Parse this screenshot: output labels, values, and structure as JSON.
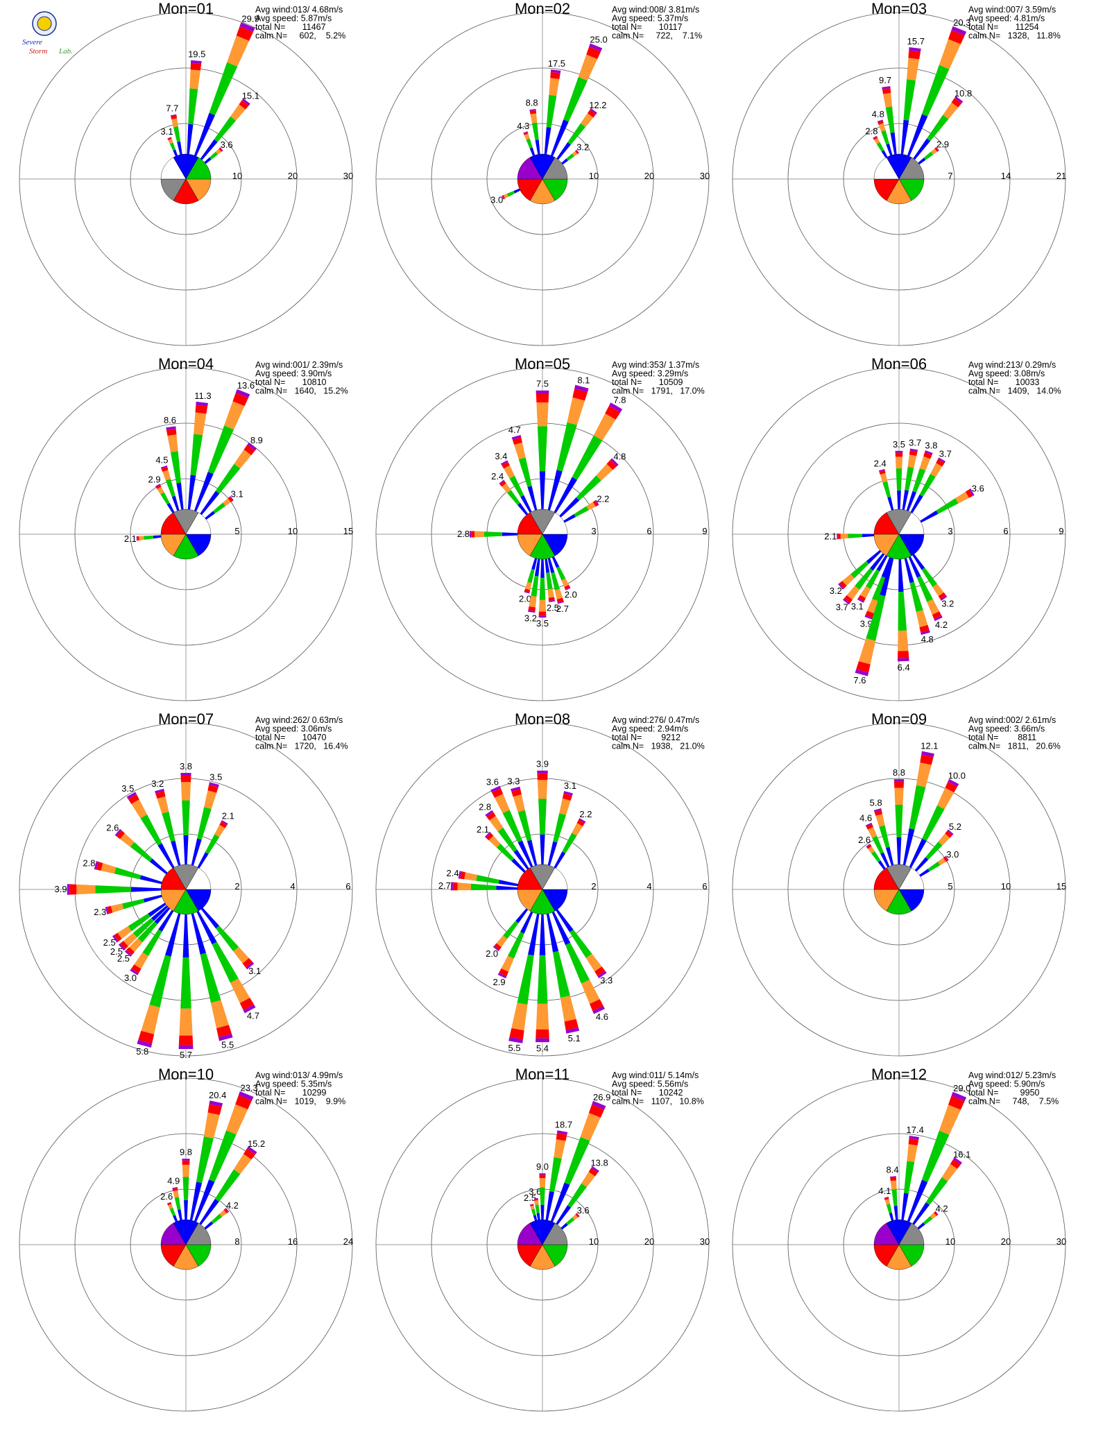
{
  "logo": {
    "text_a": "Severe",
    "text_b": "Storm",
    "text_c": "Lab."
  },
  "colors": {
    "blue": "#0000ff",
    "green": "#00cc00",
    "orange": "#ff9933",
    "red": "#ff0000",
    "purple": "#9900cc",
    "gray": "#888888"
  },
  "chart_data": [
    {
      "type": "wind_rose",
      "title": "Mon=01",
      "stats": {
        "avg_wind": "Avg wind:013/ 4.68m/s",
        "avg_speed": "Avg speed: 5.87m/s",
        "total": "total N=       11467",
        "calm": "calm N=     602,    5.2%"
      },
      "rings": [
        "10",
        "20",
        "30"
      ],
      "rmax": 30,
      "labeled_bars": [
        {
          "dir": 338,
          "value": 3.1
        },
        {
          "dir": 349,
          "value": 7.7
        },
        {
          "dir": 5,
          "value": 19.5
        },
        {
          "dir": 22,
          "value": 29.9
        },
        {
          "dir": 38,
          "value": 15.1
        },
        {
          "dir": 50,
          "value": 3.6
        }
      ],
      "pie": [
        "orange",
        "red",
        "gray",
        "white",
        "blue",
        "green"
      ]
    },
    {
      "type": "wind_rose",
      "title": "Mon=02",
      "stats": {
        "avg_wind": "Avg wind:008/ 3.81m/s",
        "avg_speed": "Avg speed: 5.37m/s",
        "total": "total N=       10117",
        "calm": "calm N=     722,    7.1%"
      },
      "rings": [
        "10",
        "20",
        "30"
      ],
      "rmax": 30,
      "labeled_bars": [
        {
          "dir": 340,
          "value": 4.3
        },
        {
          "dir": 352,
          "value": 8.8
        },
        {
          "dir": 7,
          "value": 17.5
        },
        {
          "dir": 22,
          "value": 25.0
        },
        {
          "dir": 37,
          "value": 12.2
        },
        {
          "dir": 52,
          "value": 3.2
        },
        {
          "dir": 245,
          "value": 3.0
        }
      ],
      "pie": [
        "green",
        "orange",
        "red",
        "purple",
        "blue",
        "gray"
      ]
    },
    {
      "type": "wind_rose",
      "title": "Mon=03",
      "stats": {
        "avg_wind": "Avg wind:007/ 3.59m/s",
        "avg_speed": "Avg speed: 4.81m/s",
        "total": "total N=       11254",
        "calm": "calm N=   1328,   11.8%"
      },
      "rings": [
        "7",
        "14",
        "21"
      ],
      "rmax": 21,
      "labeled_bars": [
        {
          "dir": 330,
          "value": 2.8
        },
        {
          "dir": 342,
          "value": 4.8
        },
        {
          "dir": 352,
          "value": 9.7
        },
        {
          "dir": 7,
          "value": 15.7
        },
        {
          "dir": 22,
          "value": 20.3
        },
        {
          "dir": 37,
          "value": 10.8
        },
        {
          "dir": 52,
          "value": 2.9
        }
      ],
      "pie": [
        "green",
        "orange",
        "red",
        "white",
        "blue",
        "gray"
      ]
    },
    {
      "type": "wind_rose",
      "title": "Mon=04",
      "stats": {
        "avg_wind": "Avg wind:001/ 2.39m/s",
        "avg_speed": "Avg speed: 3.90m/s",
        "total": "total N=       10810",
        "calm": "calm N=   1640,   15.2%"
      },
      "rings": [
        "5",
        "10",
        "15"
      ],
      "rmax": 15,
      "labeled_bars": [
        {
          "dir": 330,
          "value": 2.9
        },
        {
          "dir": 342,
          "value": 4.5
        },
        {
          "dir": 352,
          "value": 8.6
        },
        {
          "dir": 7,
          "value": 11.3
        },
        {
          "dir": 22,
          "value": 13.6
        },
        {
          "dir": 37,
          "value": 8.9
        },
        {
          "dir": 52,
          "value": 3.1
        },
        {
          "dir": 265,
          "value": 2.1
        }
      ],
      "pie": [
        "blue",
        "green",
        "orange",
        "red",
        "gray",
        "white"
      ]
    },
    {
      "type": "wind_rose",
      "title": "Mon=05",
      "stats": {
        "avg_wind": "Avg wind:353/ 1.37m/s",
        "avg_speed": "Avg speed: 3.29m/s",
        "total": "total N=       10509",
        "calm": "calm N=   1791,   17.0%"
      },
      "rings": [
        "3",
        "6",
        "9"
      ],
      "rmax": 9,
      "labeled_bars": [
        {
          "dir": 322,
          "value": 2.4
        },
        {
          "dir": 332,
          "value": 3.4
        },
        {
          "dir": 345,
          "value": 4.7
        },
        {
          "dir": 0,
          "value": 7.5
        },
        {
          "dir": 15,
          "value": 8.1
        },
        {
          "dir": 30,
          "value": 7.8
        },
        {
          "dir": 45,
          "value": 4.8
        },
        {
          "dir": 60,
          "value": 2.2
        },
        {
          "dir": 270,
          "value": 2.8
        },
        {
          "dir": 195,
          "value": 2.0
        },
        {
          "dir": 188,
          "value": 3.2
        },
        {
          "dir": 180,
          "value": 3.5
        },
        {
          "dir": 172,
          "value": 2.5
        },
        {
          "dir": 165,
          "value": 2.7
        },
        {
          "dir": 155,
          "value": 2.0
        }
      ],
      "pie": [
        "blue",
        "green",
        "orange",
        "red",
        "gray",
        "white"
      ]
    },
    {
      "type": "wind_rose",
      "title": "Mon=06",
      "stats": {
        "avg_wind": "Avg wind:213/ 0.29m/s",
        "avg_speed": "Avg speed: 3.08m/s",
        "total": "total N=       10033",
        "calm": "calm N=   1409,   14.0%"
      },
      "rings": [
        "3",
        "6",
        "9"
      ],
      "rmax": 9,
      "labeled_bars": [
        {
          "dir": 345,
          "value": 2.4
        },
        {
          "dir": 0,
          "value": 3.5
        },
        {
          "dir": 10,
          "value": 3.7
        },
        {
          "dir": 20,
          "value": 3.8
        },
        {
          "dir": 30,
          "value": 3.7
        },
        {
          "dir": 60,
          "value": 3.6
        },
        {
          "dir": 268,
          "value": 2.1
        },
        {
          "dir": 228,
          "value": 3.2
        },
        {
          "dir": 218,
          "value": 3.7
        },
        {
          "dir": 210,
          "value": 3.1
        },
        {
          "dir": 200,
          "value": 3.9
        },
        {
          "dir": 195,
          "value": 7.6
        },
        {
          "dir": 178,
          "value": 6.4
        },
        {
          "dir": 165,
          "value": 4.8
        },
        {
          "dir": 155,
          "value": 4.2
        },
        {
          "dir": 145,
          "value": 3.2
        }
      ],
      "pie": [
        "blue",
        "green",
        "orange",
        "red",
        "gray",
        "white"
      ]
    },
    {
      "type": "wind_rose",
      "title": "Mon=07",
      "stats": {
        "avg_wind": "Avg wind:262/ 0.63m/s",
        "avg_speed": "Avg speed: 3.06m/s",
        "total": "total N=       10470",
        "calm": "calm N=   1720,   16.4%"
      },
      "rings": [
        "2",
        "4",
        "6"
      ],
      "rmax": 6,
      "labeled_bars": [
        {
          "dir": 310,
          "value": 2.6
        },
        {
          "dir": 330,
          "value": 3.5
        },
        {
          "dir": 345,
          "value": 3.2
        },
        {
          "dir": 0,
          "value": 3.8
        },
        {
          "dir": 15,
          "value": 3.5
        },
        {
          "dir": 30,
          "value": 2.1
        },
        {
          "dir": 285,
          "value": 2.8
        },
        {
          "dir": 270,
          "value": 3.9
        },
        {
          "dir": 255,
          "value": 2.3
        },
        {
          "dir": 235,
          "value": 2.5
        },
        {
          "dir": 228,
          "value": 2.5
        },
        {
          "dir": 222,
          "value": 2.5
        },
        {
          "dir": 212,
          "value": 3.0
        },
        {
          "dir": 195,
          "value": 5.8
        },
        {
          "dir": 180,
          "value": 5.7
        },
        {
          "dir": 165,
          "value": 5.5
        },
        {
          "dir": 152,
          "value": 4.7
        },
        {
          "dir": 140,
          "value": 3.1
        }
      ],
      "pie": [
        "blue",
        "green",
        "orange",
        "red",
        "gray",
        "white"
      ]
    },
    {
      "type": "wind_rose",
      "title": "Mon=08",
      "stats": {
        "avg_wind": "Avg wind:276/ 0.47m/s",
        "avg_speed": "Avg speed: 2.94m/s",
        "total": "total N=        9212",
        "calm": "calm N=   1938,   21.0%"
      },
      "rings": [
        "2",
        "4",
        "6"
      ],
      "rmax": 6,
      "labeled_bars": [
        {
          "dir": 315,
          "value": 2.1
        },
        {
          "dir": 325,
          "value": 2.8
        },
        {
          "dir": 335,
          "value": 3.6
        },
        {
          "dir": 345,
          "value": 3.3
        },
        {
          "dir": 0,
          "value": 3.9
        },
        {
          "dir": 15,
          "value": 3.1
        },
        {
          "dir": 30,
          "value": 2.2
        },
        {
          "dir": 280,
          "value": 2.4
        },
        {
          "dir": 272,
          "value": 2.7
        },
        {
          "dir": 218,
          "value": 2.0
        },
        {
          "dir": 205,
          "value": 2.9
        },
        {
          "dir": 190,
          "value": 5.5
        },
        {
          "dir": 180,
          "value": 5.4
        },
        {
          "dir": 168,
          "value": 5.1
        },
        {
          "dir": 155,
          "value": 4.6
        },
        {
          "dir": 145,
          "value": 3.3
        }
      ],
      "pie": [
        "blue",
        "green",
        "orange",
        "red",
        "gray",
        "white"
      ]
    },
    {
      "type": "wind_rose",
      "title": "Mon=09",
      "stats": {
        "avg_wind": "Avg wind:002/ 2.61m/s",
        "avg_speed": "Avg speed: 3.66m/s",
        "total": "total N=        8811",
        "calm": "calm N=   1811,   20.6%"
      },
      "rings": [
        "5",
        "10",
        "15"
      ],
      "rmax": 15,
      "labeled_bars": [
        {
          "dir": 325,
          "value": 2.6
        },
        {
          "dir": 335,
          "value": 4.6
        },
        {
          "dir": 345,
          "value": 5.8
        },
        {
          "dir": 0,
          "value": 8.8
        },
        {
          "dir": 12,
          "value": 12.1
        },
        {
          "dir": 27,
          "value": 10.0
        },
        {
          "dir": 42,
          "value": 5.2
        },
        {
          "dir": 57,
          "value": 3.0
        }
      ],
      "pie": [
        "blue",
        "green",
        "orange",
        "red",
        "gray",
        "white"
      ]
    },
    {
      "type": "wind_rose",
      "title": "Mon=10",
      "stats": {
        "avg_wind": "Avg wind:013/ 4.99m/s",
        "avg_speed": "Avg speed: 5.35m/s",
        "total": "total N=       10299",
        "calm": "calm N=   1019,    9.9%"
      },
      "rings": [
        "8",
        "16",
        "24"
      ],
      "rmax": 24,
      "labeled_bars": [
        {
          "dir": 338,
          "value": 2.6
        },
        {
          "dir": 349,
          "value": 4.9
        },
        {
          "dir": 0,
          "value": 9.8
        },
        {
          "dir": 12,
          "value": 20.4
        },
        {
          "dir": 22,
          "value": 23.3
        },
        {
          "dir": 35,
          "value": 15.2
        },
        {
          "dir": 50,
          "value": 4.2
        }
      ],
      "pie": [
        "green",
        "orange",
        "red",
        "purple",
        "blue",
        "gray"
      ]
    },
    {
      "type": "wind_rose",
      "title": "Mon=11",
      "stats": {
        "avg_wind": "Avg wind:011/ 5.14m/s",
        "avg_speed": "Avg speed: 5.56m/s",
        "total": "total N=       10242",
        "calm": "calm N=   1107,   10.8%"
      },
      "rings": [
        "10",
        "20",
        "30"
      ],
      "rmax": 30,
      "labeled_bars": [
        {
          "dir": 345,
          "value": 2.5
        },
        {
          "dir": 352,
          "value": 3.6
        },
        {
          "dir": 0,
          "value": 9.0
        },
        {
          "dir": 10,
          "value": 18.7
        },
        {
          "dir": 22,
          "value": 26.9
        },
        {
          "dir": 35,
          "value": 13.8
        },
        {
          "dir": 50,
          "value": 3.6
        }
      ],
      "pie": [
        "green",
        "orange",
        "red",
        "purple",
        "blue",
        "gray"
      ]
    },
    {
      "type": "wind_rose",
      "title": "Mon=12",
      "stats": {
        "avg_wind": "Avg wind:012/ 5.23m/s",
        "avg_speed": "Avg speed: 5.90m/s",
        "total": "total N=         9950",
        "calm": "calm N=     748,    7.5%"
      },
      "rings": [
        "10",
        "20",
        "30"
      ],
      "rmax": 30,
      "labeled_bars": [
        {
          "dir": 345,
          "value": 4.1
        },
        {
          "dir": 355,
          "value": 8.4
        },
        {
          "dir": 8,
          "value": 17.4
        },
        {
          "dir": 22,
          "value": 29.0
        },
        {
          "dir": 35,
          "value": 16.1
        },
        {
          "dir": 50,
          "value": 4.2
        }
      ],
      "pie": [
        "green",
        "orange",
        "red",
        "purple",
        "blue",
        "gray"
      ]
    }
  ]
}
